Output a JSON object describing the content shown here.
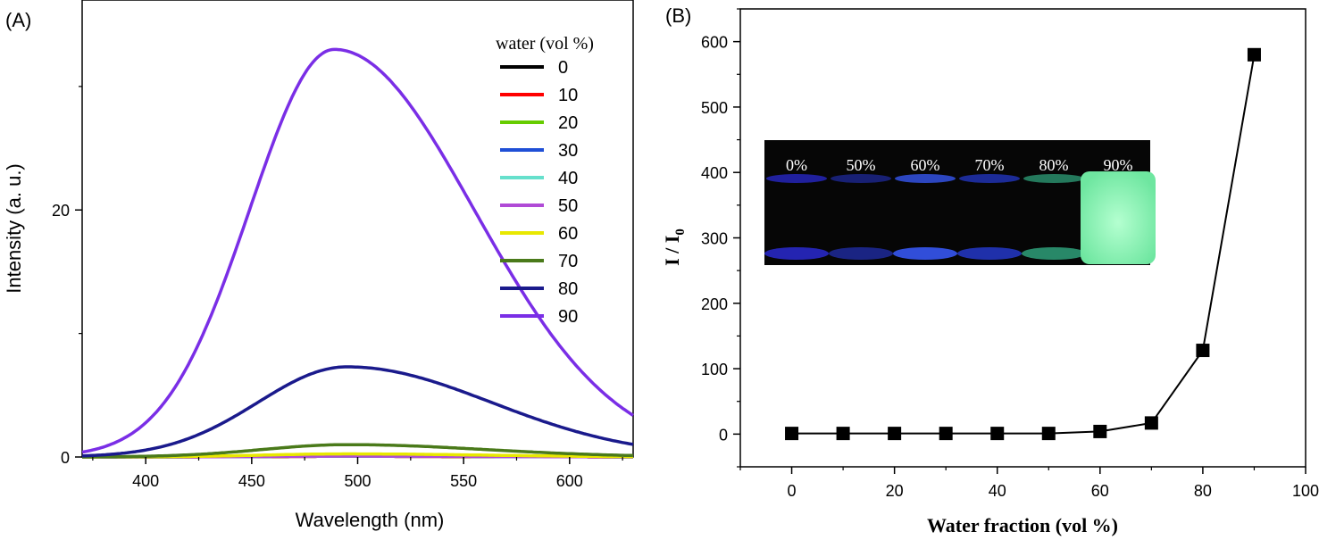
{
  "chart_data": [
    {
      "panel_label": "(A)",
      "type": "line",
      "xlabel": "Wavelength (nm)",
      "ylabel": "Intensity (a. u.)",
      "xlim": [
        370,
        630
      ],
      "ylim": [
        0,
        37
      ],
      "x_ticks": [
        400,
        450,
        500,
        550,
        600
      ],
      "x_tick_labels": [
        "400",
        "450",
        "500",
        "550",
        "600"
      ],
      "y_ticks": [
        0,
        20
      ],
      "y_tick_labels": [
        "0",
        "20"
      ],
      "legend_title": "water (vol %)",
      "legend_position": "top-right",
      "series": [
        {
          "name": "0",
          "color": "#000000",
          "peak": 0.05,
          "center": 495,
          "width_left": 40,
          "width_right": 65
        },
        {
          "name": "10",
          "color": "#ff0000",
          "peak": 0.05,
          "center": 495,
          "width_left": 40,
          "width_right": 65
        },
        {
          "name": "20",
          "color": "#66cc00",
          "peak": 0.06,
          "center": 495,
          "width_left": 40,
          "width_right": 65
        },
        {
          "name": "30",
          "color": "#1f4fd6",
          "peak": 0.07,
          "center": 495,
          "width_left": 40,
          "width_right": 65
        },
        {
          "name": "40",
          "color": "#66e0cc",
          "peak": 0.07,
          "center": 495,
          "width_left": 40,
          "width_right": 65
        },
        {
          "name": "50",
          "color": "#b04ad6",
          "peak": 0.07,
          "center": 495,
          "width_left": 40,
          "width_right": 65
        },
        {
          "name": "60",
          "color": "#e8e800",
          "peak": 0.25,
          "center": 495,
          "width_left": 40,
          "width_right": 65
        },
        {
          "name": "70",
          "color": "#4a7a1a",
          "peak": 1.0,
          "center": 495,
          "width_left": 40,
          "width_right": 65
        },
        {
          "name": "80",
          "color": "#1a1a8c",
          "peak": 7.3,
          "center": 495,
          "width_left": 42,
          "width_right": 68
        },
        {
          "name": "90",
          "color": "#7a2ee6",
          "peak": 33.0,
          "center": 489,
          "width_left": 40,
          "width_right": 66
        }
      ]
    },
    {
      "panel_label": "(B)",
      "type": "line",
      "xlabel": "Water fraction (vol %)",
      "ylabel": "I / I",
      "ylabel_subscript": "0",
      "xlim": [
        -10,
        100
      ],
      "ylim": [
        -50,
        650
      ],
      "x_ticks": [
        0,
        20,
        40,
        60,
        80,
        100
      ],
      "x_tick_labels": [
        "0",
        "20",
        "40",
        "60",
        "80",
        "100"
      ],
      "y_ticks": [
        0,
        100,
        200,
        300,
        400,
        500,
        600
      ],
      "y_tick_labels": [
        "0",
        "100",
        "200",
        "300",
        "400",
        "500",
        "600"
      ],
      "x": [
        0,
        10,
        20,
        30,
        40,
        50,
        60,
        70,
        80,
        90
      ],
      "values": [
        1,
        1,
        1,
        1,
        1,
        1,
        4,
        17,
        128,
        580
      ],
      "marker": "square",
      "color": "#000000",
      "inset": {
        "labels": [
          "0%",
          "50%",
          "60%",
          "70%",
          "80%",
          "90%"
        ],
        "vial_colors": [
          "#2a2ad0",
          "#1f2a9a",
          "#3a5cff",
          "#2438c8",
          "#2fa07a",
          "#8cffb4"
        ]
      }
    }
  ]
}
